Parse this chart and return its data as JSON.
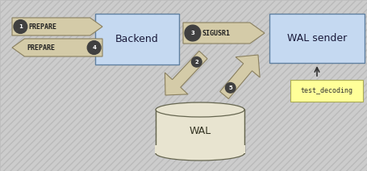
{
  "bg_hatch_color": "#d0d0d0",
  "bg_solid_color": "#cccccc",
  "arrow_fill": "#d4cba8",
  "arrow_edge": "#8a8060",
  "arrow_num_bg": "#404040",
  "arrow_num_fg": "#ffffff",
  "box_blue_fill": "#c5d9f1",
  "box_blue_edge": "#6080a0",
  "box_yellow_fill": "#ffff99",
  "box_yellow_edge": "#aaaa55",
  "wal_fill": "#e8e4d0",
  "wal_edge": "#666650",
  "prepare1": {
    "label": "PREPARE",
    "num": "1"
  },
  "prepare4": {
    "label": "PREPARE",
    "num": "4"
  },
  "sigusr1": {
    "label": "SIGUSR1",
    "num": "3"
  },
  "backend_label": "Backend",
  "walsender_label": "WAL sender",
  "wal_label": "WAL",
  "testdecoding_label": "test_decoding"
}
